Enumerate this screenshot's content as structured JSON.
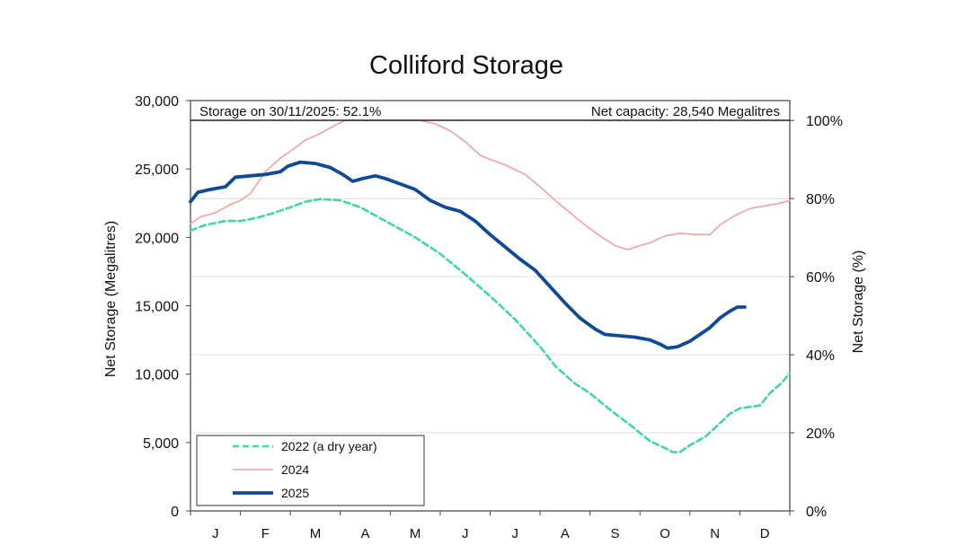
{
  "chart_data": {
    "type": "line",
    "title": "Colliford Storage",
    "ylabel": "Net Storage (Megalitres)",
    "ylabel_right": "Net Storage (%)",
    "ylim": [
      0,
      30000
    ],
    "y2lim_percent": [
      0,
      100
    ],
    "y_ticks": [
      0,
      5000,
      10000,
      15000,
      20000,
      25000,
      30000
    ],
    "y_tick_labels": [
      "0",
      "5,000",
      "10,000",
      "15,000",
      "20,000",
      "25,000",
      "30,000"
    ],
    "y2_ticks": [
      0,
      20,
      40,
      60,
      80,
      100
    ],
    "y2_tick_labels": [
      "0%",
      "20%",
      "40%",
      "60%",
      "80%",
      "100%"
    ],
    "x_domain": [
      0,
      12
    ],
    "x_unit": "month",
    "months": [
      "J",
      "F",
      "M",
      "A",
      "M",
      "J",
      "J",
      "A",
      "S",
      "O",
      "N",
      "D"
    ],
    "capacity": 28540,
    "annotations": {
      "storage_text": "Storage on 30/11/2025: 52.1%",
      "capacity_text": "Net capacity: 28,540 Megalitres"
    },
    "legend": {
      "placement": "bottom-left",
      "entries": [
        "2022 (a dry year)",
        "2024",
        "2025"
      ]
    },
    "series": [
      {
        "name": "2022 (a dry year)",
        "color": "#40d7a7",
        "style": "dashed",
        "points": [
          [
            0.0,
            20500
          ],
          [
            0.3,
            20900
          ],
          [
            0.7,
            21200
          ],
          [
            1.0,
            21200
          ],
          [
            1.3,
            21400
          ],
          [
            1.6,
            21700
          ],
          [
            2.0,
            22200
          ],
          [
            2.3,
            22600
          ],
          [
            2.6,
            22800
          ],
          [
            3.0,
            22700
          ],
          [
            3.4,
            22200
          ],
          [
            3.7,
            21600
          ],
          [
            4.0,
            21000
          ],
          [
            4.5,
            20000
          ],
          [
            5.0,
            18800
          ],
          [
            5.5,
            17300
          ],
          [
            6.0,
            15700
          ],
          [
            6.5,
            14000
          ],
          [
            7.0,
            12000
          ],
          [
            7.3,
            10600
          ],
          [
            7.7,
            9300
          ],
          [
            8.0,
            8600
          ],
          [
            8.4,
            7400
          ],
          [
            8.8,
            6300
          ],
          [
            9.2,
            5100
          ],
          [
            9.5,
            4600
          ],
          [
            9.65,
            4300
          ],
          [
            9.8,
            4300
          ],
          [
            10.0,
            4800
          ],
          [
            10.3,
            5400
          ],
          [
            10.6,
            6400
          ],
          [
            10.8,
            7100
          ],
          [
            11.0,
            7500
          ],
          [
            11.2,
            7600
          ],
          [
            11.4,
            7700
          ],
          [
            11.6,
            8600
          ],
          [
            11.85,
            9400
          ],
          [
            12.0,
            10100
          ]
        ]
      },
      {
        "name": "2024",
        "color": "#f1a0a0",
        "style": "solid",
        "points": [
          [
            0.0,
            21000
          ],
          [
            0.2,
            21500
          ],
          [
            0.5,
            21800
          ],
          [
            0.8,
            22400
          ],
          [
            1.0,
            22700
          ],
          [
            1.2,
            23200
          ],
          [
            1.5,
            24800
          ],
          [
            1.8,
            25800
          ],
          [
            2.0,
            26300
          ],
          [
            2.3,
            27100
          ],
          [
            2.6,
            27600
          ],
          [
            2.9,
            28200
          ],
          [
            3.1,
            28540
          ],
          [
            4.4,
            28540
          ],
          [
            4.6,
            28540
          ],
          [
            4.9,
            28300
          ],
          [
            5.2,
            27800
          ],
          [
            5.5,
            27000
          ],
          [
            5.8,
            26000
          ],
          [
            6.0,
            25700
          ],
          [
            6.3,
            25300
          ],
          [
            6.7,
            24600
          ],
          [
            7.0,
            23700
          ],
          [
            7.3,
            22700
          ],
          [
            7.6,
            21800
          ],
          [
            7.9,
            20900
          ],
          [
            8.2,
            20100
          ],
          [
            8.5,
            19400
          ],
          [
            8.75,
            19100
          ],
          [
            9.0,
            19400
          ],
          [
            9.2,
            19600
          ],
          [
            9.5,
            20100
          ],
          [
            9.8,
            20300
          ],
          [
            10.1,
            20200
          ],
          [
            10.4,
            20200
          ],
          [
            10.6,
            20900
          ],
          [
            10.9,
            21600
          ],
          [
            11.2,
            22100
          ],
          [
            11.5,
            22300
          ],
          [
            11.8,
            22500
          ],
          [
            12.0,
            22700
          ]
        ]
      },
      {
        "name": "2025",
        "color": "#0f4a96",
        "style": "solid",
        "points": [
          [
            0.0,
            22600
          ],
          [
            0.15,
            23300
          ],
          [
            0.4,
            23500
          ],
          [
            0.7,
            23700
          ],
          [
            0.9,
            24400
          ],
          [
            1.2,
            24500
          ],
          [
            1.5,
            24600
          ],
          [
            1.8,
            24800
          ],
          [
            1.95,
            25200
          ],
          [
            2.2,
            25500
          ],
          [
            2.5,
            25400
          ],
          [
            2.8,
            25100
          ],
          [
            3.05,
            24600
          ],
          [
            3.25,
            24100
          ],
          [
            3.45,
            24300
          ],
          [
            3.7,
            24500
          ],
          [
            3.9,
            24300
          ],
          [
            4.2,
            23900
          ],
          [
            4.5,
            23500
          ],
          [
            4.8,
            22700
          ],
          [
            5.1,
            22200
          ],
          [
            5.4,
            21900
          ],
          [
            5.7,
            21200
          ],
          [
            6.0,
            20200
          ],
          [
            6.3,
            19300
          ],
          [
            6.6,
            18400
          ],
          [
            6.9,
            17600
          ],
          [
            7.2,
            16400
          ],
          [
            7.5,
            15200
          ],
          [
            7.8,
            14100
          ],
          [
            8.1,
            13300
          ],
          [
            8.3,
            12900
          ],
          [
            8.6,
            12800
          ],
          [
            8.9,
            12700
          ],
          [
            9.2,
            12500
          ],
          [
            9.4,
            12200
          ],
          [
            9.55,
            11900
          ],
          [
            9.75,
            12000
          ],
          [
            10.0,
            12400
          ],
          [
            10.2,
            12900
          ],
          [
            10.4,
            13400
          ],
          [
            10.6,
            14100
          ],
          [
            10.8,
            14600
          ],
          [
            10.95,
            14900
          ],
          [
            11.1,
            14900
          ]
        ]
      }
    ]
  }
}
